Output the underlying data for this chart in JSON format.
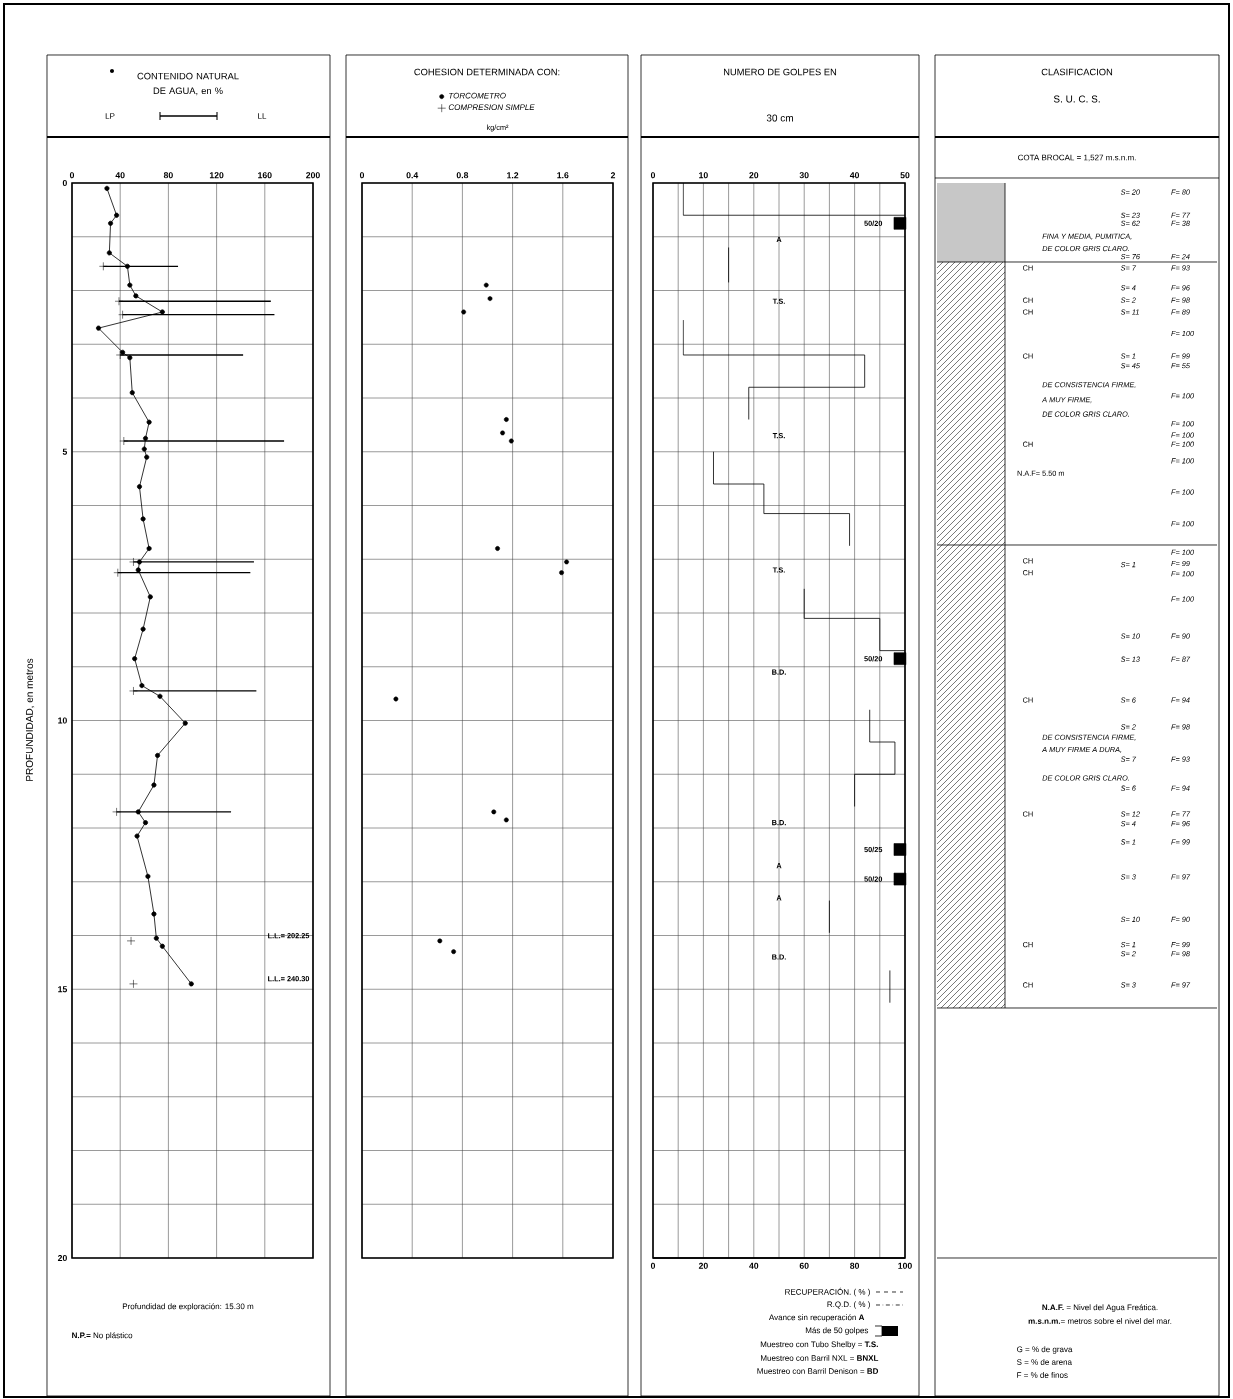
{
  "chart_data": [
    {
      "type": "line",
      "title": "CONTENIDO NATURAL DE AGUA, en %",
      "ylabel": "PROFUNDIDAD, en metros",
      "xlim": [
        0,
        200
      ],
      "xticks": [
        0,
        40,
        80,
        120,
        160,
        200
      ],
      "ylim": [
        20,
        0
      ],
      "yticks": [
        0,
        {
          "value": 1,
          "label": null
        },
        {
          "value": 2,
          "label": null
        },
        {
          "value": 3,
          "label": null
        },
        {
          "value": 4,
          "label": null
        },
        5,
        {
          "value": 6,
          "label": null
        },
        {
          "value": 7,
          "label": null
        },
        {
          "value": 8,
          "label": null
        },
        {
          "value": 9,
          "label": null
        },
        10,
        {
          "value": 11,
          "label": null
        },
        {
          "value": 12,
          "label": null
        },
        {
          "value": 13,
          "label": null
        },
        {
          "value": 14,
          "label": null
        },
        15,
        {
          "value": 16,
          "label": null
        },
        {
          "value": 17,
          "label": null
        },
        {
          "value": 18,
          "label": null
        },
        {
          "value": 19,
          "label": null
        },
        20
      ],
      "grid": true,
      "marker": "circle",
      "series": [
        {
          "type": "line",
          "color": "#000000",
          "x": [
            29,
            37,
            32,
            31,
            46,
            48,
            53,
            75,
            22,
            42,
            48,
            50,
            64,
            61,
            60,
            62,
            56,
            59,
            64,
            56,
            55,
            65,
            59,
            52,
            58,
            73,
            94,
            71,
            68,
            55,
            61,
            54,
            63,
            68,
            70,
            75,
            99
          ],
          "values": [
            0.1,
            0.6,
            0.75,
            1.3,
            1.55,
            1.9,
            2.1,
            2.4,
            2.7,
            3.15,
            3.25,
            3.9,
            4.45,
            4.75,
            4.95,
            5.1,
            5.65,
            6.25,
            6.8,
            7.05,
            7.2,
            7.7,
            8.3,
            8.85,
            9.35,
            9.55,
            10.05,
            10.65,
            11.2,
            11.7,
            11.9,
            12.15,
            12.9,
            13.6,
            14.05,
            14.2,
            14.9
          ]
        },
        {
          "type": "scatter",
          "marker": "cross",
          "color": "#000000",
          "x": [
            26,
            39,
            42,
            40,
            43,
            51,
            38,
            51,
            37,
            49,
            51
          ],
          "values": [
            1.55,
            2.2,
            2.45,
            3.2,
            4.8,
            7.05,
            7.25,
            9.45,
            11.7,
            14.1,
            14.9
          ],
          "xerrors": [
            [
              26,
              88
            ],
            [
              39,
              165
            ],
            [
              42,
              168
            ],
            [
              40,
              142
            ],
            [
              43,
              176
            ],
            [
              51,
              151
            ],
            [
              38,
              148
            ],
            [
              51,
              153
            ],
            [
              37,
              132
            ],
            null,
            null
          ]
        }
      ],
      "annotations": [
        "LP",
        "LL",
        "L.L.= 202.25",
        "L.L.= 240.30",
        "Profundidad de exploración: 15.30 m",
        "**N.P.=** No plástico"
      ]
    },
    {
      "type": "scatter",
      "title": "COHESION DETERMINADA CON:",
      "xlabel": "kg/cm²",
      "xlim": [
        0,
        2
      ],
      "xticks": [
        0,
        0.4,
        0.8,
        1.2,
        1.6,
        2
      ],
      "ylim": [
        20,
        0
      ],
      "yticks": [
        0,
        {
          "value": 1,
          "label": null
        },
        {
          "value": 2,
          "label": null
        },
        {
          "value": 3,
          "label": null
        },
        {
          "value": 4,
          "label": null
        },
        5,
        {
          "value": 6,
          "label": null
        },
        {
          "value": 7,
          "label": null
        },
        {
          "value": 8,
          "label": null
        },
        {
          "value": 9,
          "label": null
        },
        10,
        {
          "value": 11,
          "label": null
        },
        {
          "value": 12,
          "label": null
        },
        {
          "value": 13,
          "label": null
        },
        {
          "value": 14,
          "label": null
        },
        15,
        {
          "value": 16,
          "label": null
        },
        {
          "value": 17,
          "label": null
        },
        {
          "value": 18,
          "label": null
        },
        {
          "value": 19,
          "label": null
        },
        20
      ],
      "tick_labels": "x",
      "grid": true,
      "legend": "top",
      "series": [
        {
          "name": "TORCOMETRO",
          "marker": "circle",
          "color": "#000000",
          "x": [
            0.99,
            1.02,
            0.81,
            1.15,
            1.12,
            1.19,
            1.08,
            1.63,
            1.59,
            0.27,
            1.05,
            1.15,
            0.62,
            0.73
          ],
          "values": [
            1.9,
            2.15,
            2.4,
            4.4,
            4.65,
            4.8,
            6.8,
            7.05,
            7.25,
            9.6,
            11.7,
            11.85,
            14.1,
            14.3
          ]
        },
        {
          "name": "COMPRESION SIMPLE",
          "marker": "cross",
          "color": "#000000"
        }
      ]
    },
    {
      "type": "line",
      "title": "NUMERO DE GOLPES EN",
      "subtitle": "30 cm",
      "xlim": [
        0,
        50
      ],
      "xticks": [
        0,
        {
          "value": 5,
          "label": null
        },
        10,
        {
          "value": 15,
          "label": null
        },
        20,
        {
          "value": 25,
          "label": null
        },
        30,
        {
          "value": 35,
          "label": null
        },
        40,
        {
          "value": 45,
          "label": null
        },
        50
      ],
      "x2lim": [
        0,
        100
      ],
      "x2ticks": [
        0,
        20,
        40,
        60,
        80,
        100
      ],
      "ylim": [
        20,
        0
      ],
      "yticks": [
        0,
        {
          "value": 1,
          "label": null
        },
        {
          "value": 2,
          "label": null
        },
        {
          "value": 3,
          "label": null
        },
        {
          "value": 4,
          "label": null
        },
        5,
        {
          "value": 6,
          "label": null
        },
        {
          "value": 7,
          "label": null
        },
        {
          "value": 8,
          "label": null
        },
        {
          "value": 9,
          "label": null
        },
        10,
        {
          "value": 11,
          "label": null
        },
        {
          "value": 12,
          "label": null
        },
        {
          "value": 13,
          "label": null
        },
        {
          "value": 14,
          "label": null
        },
        15,
        {
          "value": 16,
          "label": null
        },
        {
          "value": 17,
          "label": null
        },
        {
          "value": 18,
          "label": null
        },
        {
          "value": 19,
          "label": null
        },
        20
      ],
      "tick_labels": "x",
      "grid": true,
      "series": [
        {
          "type": "line",
          "color": "#000000",
          "x": [
            6,
            6,
            50,
            null,
            15,
            15,
            null,
            6,
            6,
            42,
            42,
            19,
            19,
            null,
            12,
            12,
            22,
            22,
            39,
            39,
            null,
            30,
            30,
            45,
            45,
            50,
            null,
            43,
            43,
            48,
            48,
            40,
            40,
            null,
            35,
            35,
            null,
            47,
            47
          ],
          "values": [
            0,
            0.6,
            0.6,
            null,
            1.2,
            1.85,
            null,
            2.55,
            3.2,
            3.2,
            3.8,
            3.8,
            4.4,
            null,
            5,
            5.6,
            5.6,
            6.15,
            6.15,
            6.75,
            null,
            7.55,
            8.1,
            8.1,
            8.7,
            8.7,
            null,
            9.8,
            10.4,
            10.4,
            11,
            11,
            11.6,
            null,
            13.35,
            13.95,
            null,
            14.65,
            15.25
          ]
        },
        {
          "type": "scatter",
          "marker": "square",
          "color": "#000000",
          "x": [
            49,
            49,
            49,
            49
          ],
          "values": [
            0.75,
            8.85,
            12.4,
            12.95
          ]
        }
      ],
      "annotations": [
        "50/20",
        "50/20",
        "50/25",
        "50/20",
        "A",
        "T.S.",
        "T.S.",
        "T.S.",
        "B.D.",
        "B.D.",
        "A",
        "A",
        "B.D.",
        "RECUPERACIÓN. ( % )",
        "R.Q.D. ( % )",
        "Avance sin recuperación  **A**",
        "Más de 50 golpes",
        "Muestreo con Tubo Shelby = **T.S.**",
        "Muestreo con Barril NXL = **BNXL**",
        "Muestreo con Barril Denison = **BD**"
      ]
    },
    {
      "type": "other",
      "title": "CLASIFICACION",
      "subtitle": "S. U. C. S.",
      "annotations": [
        "COTA BROCAL = 1,527 m.s.n.m.",
        "S= 20",
        "F= 80",
        "S= 23",
        "F= 77",
        "S= 62",
        "F= 38",
        "FINA Y MEDIA, PUMITICA,",
        "DE COLOR GRIS CLARO.",
        "S= 76",
        "F= 24",
        "CH",
        "S= 7",
        "F= 93",
        "S= 4",
        "F= 96",
        "CH",
        "S= 2",
        "F= 98",
        "CH",
        "S= 11",
        "F= 89",
        "F= 100",
        "CH",
        "S= 1",
        "F= 99",
        "S= 45",
        "F= 55",
        "DE CONSISTENCIA FIRME,",
        "A MUY FIRME,",
        "DE COLOR GRIS CLARO.",
        "F= 100",
        "F= 100",
        "F= 100",
        "CH",
        "F= 100",
        "F= 100",
        "N.A.F= 5.50 m",
        "F= 100",
        "F= 100",
        "F= 100",
        "CH",
        "S= 1",
        "F= 99",
        "CH",
        "F= 100",
        "F= 100",
        "S= 10",
        "F= 90",
        "S= 13",
        "F= 87",
        "CH",
        "S= 6",
        "F= 94",
        "S= 2",
        "F= 98",
        "DE CONSISTENCIA FIRME,",
        "A MUY FIRME A DURA,",
        "S= 7",
        "F= 93",
        "DE COLOR GRIS CLARO.",
        "S= 6",
        "F= 94",
        "CH",
        "S= 12",
        "F= 77",
        "S= 4",
        "F= 96",
        "S= 1",
        "F= 99",
        "S= 3",
        "F= 97",
        "S= 10",
        "F= 90",
        "CH",
        "S= 1",
        "F= 99",
        "S= 2",
        "F= 98",
        "CH",
        "S= 3",
        "F= 97",
        "**N.A.F.** = Nivel del Agua Freática.",
        "**m.s.n.m.**= metros sobre el nivel del mar.",
        "G = % de grava",
        "S = % de arena",
        "F = % de finos"
      ]
    }
  ]
}
